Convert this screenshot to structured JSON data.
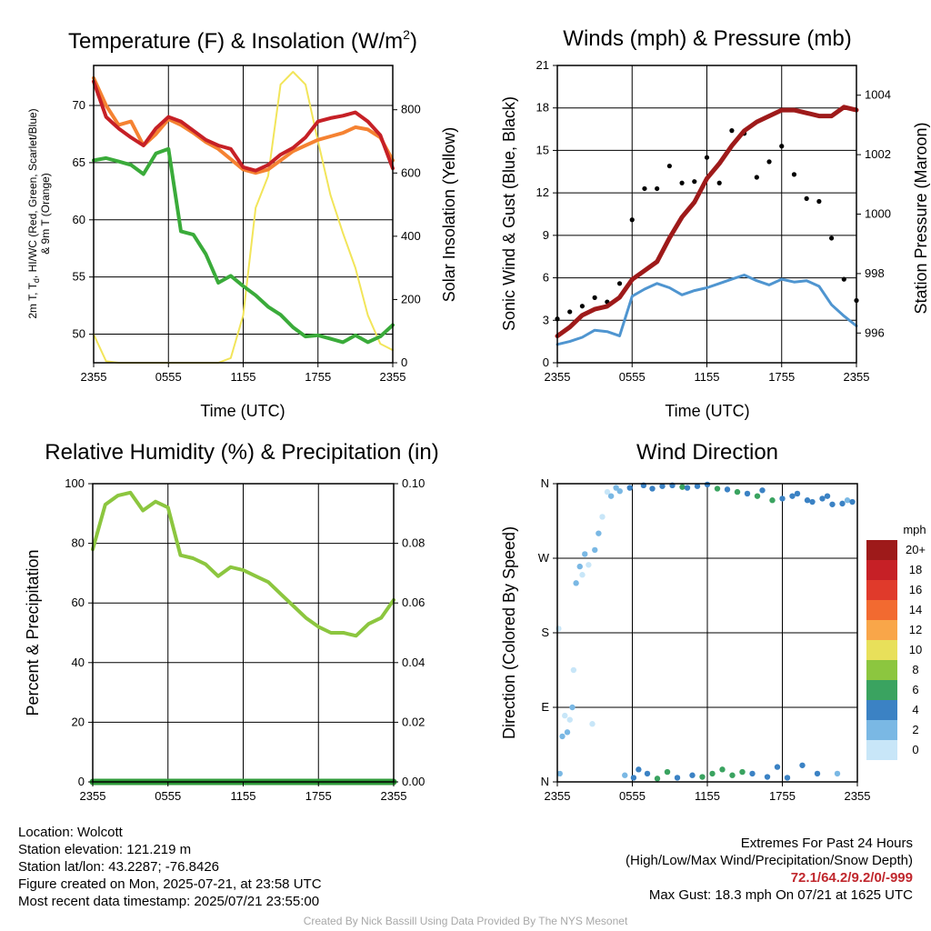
{
  "colors": {
    "red": "#c62026",
    "orange": "#f58232",
    "green": "#3aab3a",
    "yellow": "#f2e55a",
    "blue": "#4f95d0",
    "black": "#000000",
    "maroon": "#9e1a1a",
    "rh_green": "#8cc63f",
    "precip": "#2f9b3a",
    "credit": "#a8a8a8",
    "extremes": "#c0272d"
  },
  "time_ticks": [
    "2355",
    "0555",
    "1155",
    "1755",
    "2355"
  ],
  "panels": {
    "temp": {
      "title_main": "Temperature (F) & Insolation (W/m",
      "title_sup": "2",
      "title_end": ")",
      "ylabel_left_line1": "2m T, T",
      "ylabel_left_sub": "d",
      "ylabel_left_rest": ", HI/WC (Red, Green, Scarlet/Blue)",
      "ylabel_left_line2": "& 9m T (Orange)",
      "ylabel_right": "Solar Insolation (Yellow)",
      "xlabel": "Time (UTC)"
    },
    "wind": {
      "title": "Winds (mph) & Pressure (mb)",
      "ylabel_left": "Sonic Wind & Gust (Blue, Black)",
      "ylabel_right": "Station Pressure (Maroon)",
      "xlabel": "Time (UTC)"
    },
    "rh": {
      "title": "Relative Humidity (%) & Precipitation (in)",
      "ylabel_left": "Percent & Precipitation"
    },
    "dir": {
      "title": "Wind Direction",
      "ylabel_left": "Direction (Colored By Speed)",
      "legend_title": "mph",
      "legend": [
        {
          "label": "20+",
          "color": "#9e1a1a"
        },
        {
          "label": "18",
          "color": "#c62026"
        },
        {
          "label": "16",
          "color": "#e03a2b"
        },
        {
          "label": "14",
          "color": "#f26a30"
        },
        {
          "label": "12",
          "color": "#f9a649"
        },
        {
          "label": "10",
          "color": "#e8e05a"
        },
        {
          "label": "8",
          "color": "#8cc63f"
        },
        {
          "label": "6",
          "color": "#3aa360"
        },
        {
          "label": "4",
          "color": "#3b82c4"
        },
        {
          "label": "2",
          "color": "#7ab8e4"
        },
        {
          "label": "0",
          "color": "#c8e6f8"
        }
      ]
    }
  },
  "chart_data": [
    {
      "type": "line",
      "title": "Temperature (F) & Insolation (W/m2)",
      "xlabel": "Time (UTC)",
      "ylabel": "2m T, Td, HI/WC (Red, Green, Scarlet/Blue) & 9m T (Orange)",
      "ylabel_right": "Solar Insolation (Yellow)",
      "x_hours": [
        0,
        1,
        2,
        3,
        4,
        5,
        6,
        7,
        8,
        9,
        10,
        11,
        12,
        13,
        14,
        15,
        16,
        17,
        18,
        19,
        20,
        21,
        22,
        23,
        24
      ],
      "ylim": [
        47.5,
        73.5
      ],
      "yticks": [
        50,
        55,
        60,
        65,
        70
      ],
      "ylim_right": [
        0,
        940
      ],
      "yticks_right": [
        0,
        200,
        400,
        600,
        800
      ],
      "series": [
        {
          "name": "2m T",
          "color": "#c62026",
          "axis": "left",
          "values": [
            72.1,
            69,
            68,
            67.2,
            66.5,
            68,
            69,
            68.6,
            67.8,
            67,
            66.5,
            66.2,
            64.6,
            64.3,
            64.8,
            65.7,
            66.3,
            67.2,
            68.6,
            68.9,
            69.1,
            69.4,
            68.6,
            67.4,
            64.5
          ]
        },
        {
          "name": "9m T",
          "color": "#f58232",
          "axis": "left",
          "values": [
            72.4,
            70,
            68.3,
            68.6,
            66.5,
            67.5,
            68.8,
            68.3,
            67.6,
            66.8,
            66.2,
            65.3,
            64.4,
            64.1,
            64.4,
            65.2,
            66,
            66.5,
            67,
            67.3,
            67.6,
            68.1,
            67.9,
            67.2,
            65.2
          ]
        },
        {
          "name": "Td",
          "color": "#3aab3a",
          "axis": "left",
          "values": [
            65.2,
            65.4,
            65.1,
            64.8,
            64,
            65.8,
            66.2,
            59,
            58.7,
            57,
            54.5,
            55.1,
            54.2,
            53.4,
            52.4,
            51.7,
            50.6,
            49.8,
            49.9,
            49.6,
            49.3,
            49.9,
            49.3,
            49.8,
            50.8
          ]
        },
        {
          "name": "Solar Insolation",
          "color": "#f2e55a",
          "axis": "right",
          "values": [
            90,
            5,
            0,
            0,
            0,
            0,
            0,
            0,
            0,
            0,
            0,
            15,
            150,
            490,
            590,
            880,
            920,
            880,
            700,
            530,
            410,
            300,
            150,
            60,
            40
          ]
        }
      ]
    },
    {
      "type": "line",
      "title": "Winds (mph) & Pressure (mb)",
      "xlabel": "Time (UTC)",
      "ylabel": "Sonic Wind & Gust (Blue, Black)",
      "ylabel_right": "Station Pressure (Maroon)",
      "x_hours": [
        0,
        1,
        2,
        3,
        4,
        5,
        6,
        7,
        8,
        9,
        10,
        11,
        12,
        13,
        14,
        15,
        16,
        17,
        18,
        19,
        20,
        21,
        22,
        23,
        24
      ],
      "ylim": [
        0,
        21
      ],
      "yticks": [
        0,
        3,
        6,
        9,
        12,
        15,
        18,
        21
      ],
      "ylim_right": [
        995.0,
        1005.0
      ],
      "yticks_right": [
        996,
        998,
        1000,
        1002,
        1004
      ],
      "series": [
        {
          "name": "Sonic Wind",
          "color": "#4f95d0",
          "axis": "left",
          "values": [
            1.3,
            1.5,
            1.8,
            2.3,
            2.2,
            1.9,
            4.7,
            5.2,
            5.6,
            5.3,
            4.8,
            5.1,
            5.3,
            5.6,
            5.9,
            6.2,
            5.8,
            5.5,
            5.9,
            5.7,
            5.8,
            5.4,
            4.1,
            3.3,
            2.6
          ]
        },
        {
          "name": "Gust",
          "color": "#000000",
          "axis": "left",
          "values": [
            3.1,
            3.6,
            4,
            4.6,
            4.3,
            5.6,
            10.1,
            12.3,
            12.3,
            13.9,
            12.7,
            12.8,
            14.5,
            12.7,
            16.4,
            16.2,
            13.1,
            14.2,
            15.3,
            13.3,
            11.6,
            11.4,
            8.8,
            5.9,
            4.4
          ]
        },
        {
          "name": "Station Pressure",
          "color": "#9e1a1a",
          "axis": "right",
          "values": [
            995.9,
            996.2,
            996.6,
            996.8,
            996.9,
            997.2,
            997.8,
            998.1,
            998.4,
            999.2,
            999.9,
            1000.4,
            1001.2,
            1001.7,
            1002.3,
            1002.8,
            1003.1,
            1003.3,
            1003.5,
            1003.5,
            1003.4,
            1003.3,
            1003.3,
            1003.6,
            1003.5
          ]
        }
      ]
    },
    {
      "type": "line",
      "title": "Relative Humidity (%) & Precipitation (in)",
      "ylabel": "Percent & Precipitation",
      "x_hours": [
        0,
        1,
        2,
        3,
        4,
        5,
        6,
        7,
        8,
        9,
        10,
        11,
        12,
        13,
        14,
        15,
        16,
        17,
        18,
        19,
        20,
        21,
        22,
        23,
        24
      ],
      "ylim": [
        0,
        100
      ],
      "yticks": [
        0,
        20,
        40,
        60,
        80,
        100
      ],
      "ylim_right": [
        0,
        0.1
      ],
      "yticks_right": [
        "0.00",
        "0.02",
        "0.04",
        "0.06",
        "0.08",
        "0.10"
      ],
      "series": [
        {
          "name": "Relative Humidity",
          "color": "#8cc63f",
          "axis": "left",
          "values": [
            78,
            93,
            96,
            97,
            91,
            94,
            92,
            76,
            75,
            73,
            69,
            72,
            71,
            69,
            67,
            63,
            59,
            55,
            52,
            50,
            50,
            49,
            53,
            55,
            61
          ]
        },
        {
          "name": "Precipitation",
          "color": "#2f9b3a",
          "axis": "right",
          "values": [
            0,
            0,
            0,
            0,
            0,
            0,
            0,
            0,
            0,
            0,
            0,
            0,
            0,
            0,
            0,
            0,
            0,
            0,
            0,
            0,
            0,
            0,
            0,
            0,
            0
          ]
        }
      ]
    },
    {
      "type": "scatter",
      "title": "Wind Direction",
      "ylabel": "Direction (Colored By Speed)",
      "yticks": [
        "N",
        "E",
        "S",
        "W",
        "N"
      ],
      "ylim": [
        0,
        360
      ],
      "colorbar_title": "mph",
      "points": [
        {
          "t": 0.1,
          "dir": 185,
          "spd": 1
        },
        {
          "t": 0.2,
          "dir": 10,
          "spd": 3
        },
        {
          "t": 0.4,
          "dir": 55,
          "spd": 2
        },
        {
          "t": 0.6,
          "dir": 80,
          "spd": 1
        },
        {
          "t": 0.8,
          "dir": 60,
          "spd": 2
        },
        {
          "t": 1.0,
          "dir": 75,
          "spd": 1
        },
        {
          "t": 1.2,
          "dir": 90,
          "spd": 2
        },
        {
          "t": 1.3,
          "dir": 135,
          "spd": 1
        },
        {
          "t": 1.5,
          "dir": 240,
          "spd": 2
        },
        {
          "t": 1.8,
          "dir": 260,
          "spd": 2
        },
        {
          "t": 2.0,
          "dir": 250,
          "spd": 1
        },
        {
          "t": 2.2,
          "dir": 275,
          "spd": 2
        },
        {
          "t": 2.5,
          "dir": 262,
          "spd": 1
        },
        {
          "t": 2.8,
          "dir": 70,
          "spd": 1
        },
        {
          "t": 3.0,
          "dir": 280,
          "spd": 2
        },
        {
          "t": 3.3,
          "dir": 300,
          "spd": 2
        },
        {
          "t": 3.6,
          "dir": 320,
          "spd": 1
        },
        {
          "t": 4.0,
          "dir": 350,
          "spd": 1
        },
        {
          "t": 4.3,
          "dir": 345,
          "spd": 2
        },
        {
          "t": 4.7,
          "dir": 355,
          "spd": 2
        },
        {
          "t": 5.0,
          "dir": 351,
          "spd": 3
        },
        {
          "t": 5.4,
          "dir": 8,
          "spd": 3
        },
        {
          "t": 5.8,
          "dir": 355,
          "spd": 4
        },
        {
          "t": 6.1,
          "dir": 5,
          "spd": 4
        },
        {
          "t": 6.5,
          "dir": 15,
          "spd": 4
        },
        {
          "t": 6.9,
          "dir": 358,
          "spd": 5
        },
        {
          "t": 7.2,
          "dir": 10,
          "spd": 4
        },
        {
          "t": 7.6,
          "dir": 354,
          "spd": 5
        },
        {
          "t": 8.0,
          "dir": 4,
          "spd": 6
        },
        {
          "t": 8.4,
          "dir": 357,
          "spd": 5
        },
        {
          "t": 8.8,
          "dir": 12,
          "spd": 6
        },
        {
          "t": 9.2,
          "dir": 358,
          "spd": 4
        },
        {
          "t": 9.6,
          "dir": 5,
          "spd": 5
        },
        {
          "t": 10.0,
          "dir": 356,
          "spd": 6
        },
        {
          "t": 10.4,
          "dir": 355,
          "spd": 5
        },
        {
          "t": 10.8,
          "dir": 8,
          "spd": 5
        },
        {
          "t": 11.2,
          "dir": 357,
          "spd": 4
        },
        {
          "t": 11.6,
          "dir": 6,
          "spd": 6
        },
        {
          "t": 12.0,
          "dir": 359,
          "spd": 5
        },
        {
          "t": 12.4,
          "dir": 10,
          "spd": 7
        },
        {
          "t": 12.8,
          "dir": 354,
          "spd": 6
        },
        {
          "t": 13.2,
          "dir": 15,
          "spd": 6
        },
        {
          "t": 13.6,
          "dir": 353,
          "spd": 5
        },
        {
          "t": 14.0,
          "dir": 8,
          "spd": 7
        },
        {
          "t": 14.4,
          "dir": 350,
          "spd": 6
        },
        {
          "t": 14.8,
          "dir": 12,
          "spd": 6
        },
        {
          "t": 15.2,
          "dir": 348,
          "spd": 5
        },
        {
          "t": 15.6,
          "dir": 10,
          "spd": 5
        },
        {
          "t": 16.0,
          "dir": 345,
          "spd": 6
        },
        {
          "t": 16.4,
          "dir": 352,
          "spd": 5
        },
        {
          "t": 16.8,
          "dir": 6,
          "spd": 5
        },
        {
          "t": 17.2,
          "dir": 340,
          "spd": 6
        },
        {
          "t": 17.6,
          "dir": 18,
          "spd": 5
        },
        {
          "t": 18.0,
          "dir": 342,
          "spd": 5
        },
        {
          "t": 18.4,
          "dir": 5,
          "spd": 4
        },
        {
          "t": 18.8,
          "dir": 345,
          "spd": 4
        },
        {
          "t": 19.2,
          "dir": 348,
          "spd": 5
        },
        {
          "t": 19.6,
          "dir": 20,
          "spd": 5
        },
        {
          "t": 20.0,
          "dir": 340,
          "spd": 4
        },
        {
          "t": 20.4,
          "dir": 338,
          "spd": 4
        },
        {
          "t": 20.8,
          "dir": 10,
          "spd": 4
        },
        {
          "t": 21.2,
          "dir": 342,
          "spd": 4
        },
        {
          "t": 21.6,
          "dir": 345,
          "spd": 4
        },
        {
          "t": 22.0,
          "dir": 335,
          "spd": 4
        },
        {
          "t": 22.4,
          "dir": 10,
          "spd": 3
        },
        {
          "t": 22.8,
          "dir": 336,
          "spd": 4
        },
        {
          "t": 23.2,
          "dir": 340,
          "spd": 3
        },
        {
          "t": 23.6,
          "dir": 338,
          "spd": 4
        }
      ]
    }
  ],
  "footer": {
    "location": "Location: Wolcott",
    "elevation": "Station elevation: 121.219 m",
    "latlon": "Station lat/lon: 43.2287; -76.8426",
    "created": "Figure created on Mon, 2025-07-21, at 23:58 UTC",
    "recent": "Most recent data timestamp: 2025/07/21 23:55:00",
    "extremes_title": "Extremes For Past 24 Hours",
    "extremes_desc": "(High/Low/Max Wind/Precipitation/Snow Depth)",
    "extremes_values": "72.1/64.2/9.2/0/-999",
    "max_gust": "Max Gust: 18.3 mph On 07/21 at 1625 UTC",
    "credit": "Created By Nick Bassill Using Data Provided By The NYS Mesonet"
  }
}
